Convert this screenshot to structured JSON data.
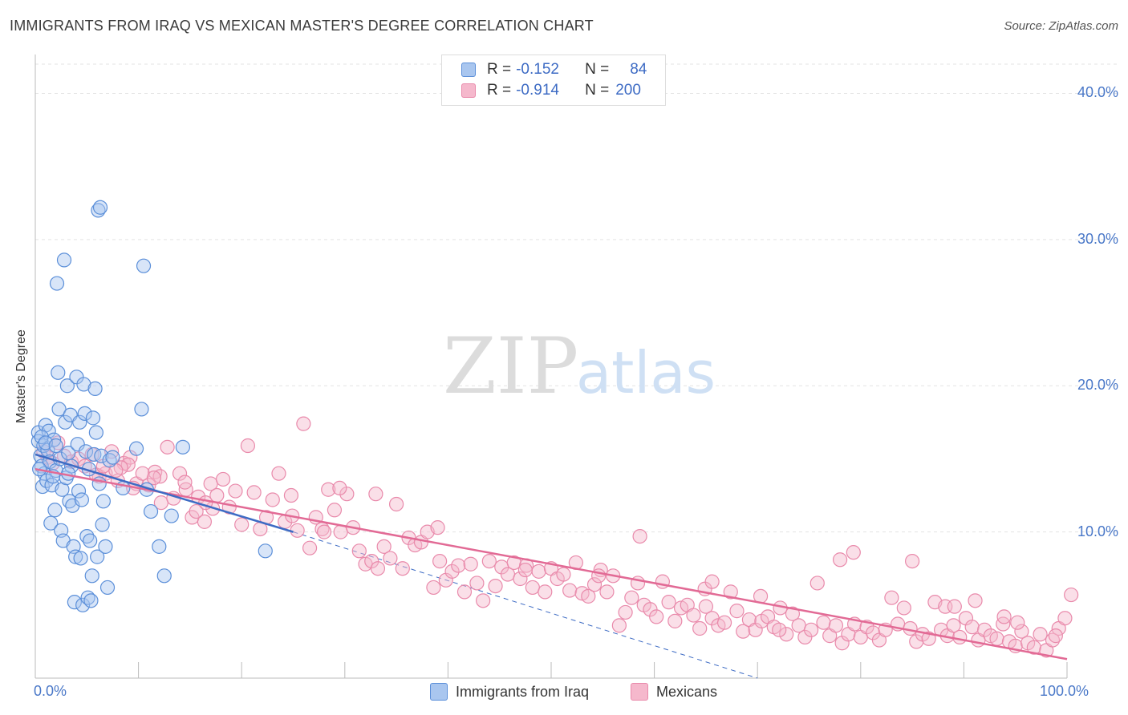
{
  "title": "IMMIGRANTS FROM IRAQ VS MEXICAN MASTER'S DEGREE CORRELATION CHART",
  "source": "Source: ZipAtlas.com",
  "watermark": {
    "zip": "ZIP",
    "atlas": "atlas"
  },
  "colors": {
    "blue_fill": "#a9c6ef",
    "blue_stroke": "#5b8fd9",
    "blue_line": "#3d6bc4",
    "pink_fill": "#f5b8cc",
    "pink_stroke": "#e98aab",
    "pink_line": "#e26a95",
    "axis_text": "#4a78c8",
    "grid": "#e3e3e3"
  },
  "legend": {
    "rows": [
      {
        "r_label": "R =",
        "r_value": "-0.152",
        "n_label": "N =",
        "n_value": "84"
      },
      {
        "r_label": "R =",
        "r_value": "-0.914",
        "n_label": "N =",
        "n_value": "200"
      }
    ]
  },
  "chart_data": {
    "type": "scatter",
    "title": "IMMIGRANTS FROM IRAQ VS MEXICAN MASTER'S DEGREE CORRELATION CHART",
    "xlabel": "",
    "ylabel": "Master's Degree",
    "xlim": [
      0,
      100
    ],
    "ylim": [
      0,
      42
    ],
    "x_tick_labels": [
      "0.0%",
      "100.0%"
    ],
    "y_ticks": [
      10,
      20,
      30,
      40
    ],
    "y_tick_labels": [
      "10.0%",
      "20.0%",
      "30.0%",
      "40.0%"
    ],
    "grid": true,
    "legend_position": "top-center",
    "series": [
      {
        "name": "Immigrants from Iraq",
        "color": "blue",
        "trend": {
          "x0": 0,
          "y0": 15.3,
          "x1": 25,
          "y1": 10.0,
          "dashed_to_x": 70,
          "dashed_to_y": 0.0
        },
        "points": [
          [
            0.3,
            16.8
          ],
          [
            0.3,
            16.2
          ],
          [
            0.5,
            15.2
          ],
          [
            0.6,
            14.5
          ],
          [
            0.7,
            13.1
          ],
          [
            0.8,
            15.9
          ],
          [
            0.9,
            14.0
          ],
          [
            1.0,
            17.3
          ],
          [
            1.1,
            13.5
          ],
          [
            1.2,
            15.6
          ],
          [
            1.3,
            16.9
          ],
          [
            1.4,
            14.8
          ],
          [
            1.5,
            10.6
          ],
          [
            1.6,
            13.2
          ],
          [
            1.8,
            16.3
          ],
          [
            1.9,
            11.5
          ],
          [
            2.0,
            14.2
          ],
          [
            2.1,
            27.0
          ],
          [
            2.2,
            20.9
          ],
          [
            2.3,
            18.4
          ],
          [
            2.4,
            15.0
          ],
          [
            2.5,
            10.1
          ],
          [
            2.6,
            12.9
          ],
          [
            2.7,
            9.4
          ],
          [
            2.8,
            28.6
          ],
          [
            2.9,
            17.5
          ],
          [
            3.0,
            13.7
          ],
          [
            3.1,
            20.0
          ],
          [
            3.2,
            15.4
          ],
          [
            3.3,
            12.1
          ],
          [
            3.4,
            18.0
          ],
          [
            3.5,
            14.5
          ],
          [
            3.6,
            11.8
          ],
          [
            3.7,
            9.0
          ],
          [
            3.8,
            5.2
          ],
          [
            3.9,
            8.3
          ],
          [
            4.0,
            20.6
          ],
          [
            4.1,
            16.0
          ],
          [
            4.2,
            12.8
          ],
          [
            4.3,
            17.5
          ],
          [
            4.4,
            8.2
          ],
          [
            4.5,
            12.2
          ],
          [
            4.6,
            5.0
          ],
          [
            4.7,
            20.1
          ],
          [
            4.8,
            18.1
          ],
          [
            4.9,
            15.5
          ],
          [
            5.0,
            9.7
          ],
          [
            5.1,
            5.5
          ],
          [
            5.2,
            14.3
          ],
          [
            5.3,
            9.4
          ],
          [
            5.4,
            5.3
          ],
          [
            5.5,
            7.0
          ],
          [
            5.6,
            17.8
          ],
          [
            5.7,
            15.3
          ],
          [
            5.8,
            19.8
          ],
          [
            5.9,
            16.8
          ],
          [
            6.0,
            8.3
          ],
          [
            6.1,
            32.0
          ],
          [
            6.2,
            13.3
          ],
          [
            6.3,
            32.2
          ],
          [
            6.4,
            15.2
          ],
          [
            6.5,
            10.5
          ],
          [
            6.6,
            12.1
          ],
          [
            6.8,
            9.0
          ],
          [
            7.0,
            6.2
          ],
          [
            7.2,
            14.9
          ],
          [
            7.5,
            15.1
          ],
          [
            8.5,
            13.0
          ],
          [
            9.8,
            15.7
          ],
          [
            10.3,
            18.4
          ],
          [
            10.5,
            28.2
          ],
          [
            10.8,
            12.9
          ],
          [
            11.2,
            11.4
          ],
          [
            12.0,
            9.0
          ],
          [
            12.5,
            7.0
          ],
          [
            13.2,
            11.1
          ],
          [
            14.3,
            15.8
          ],
          [
            22.3,
            8.7
          ],
          [
            0.4,
            14.3
          ],
          [
            0.6,
            16.5
          ],
          [
            1.0,
            16.1
          ],
          [
            1.7,
            13.8
          ],
          [
            2.0,
            15.9
          ],
          [
            3.2,
            14.0
          ]
        ]
      },
      {
        "name": "Mexicans",
        "color": "pink",
        "trend": {
          "x0": 0,
          "y0": 14.3,
          "x1": 100,
          "y1": 1.3
        },
        "points": [
          [
            0.8,
            15.5
          ],
          [
            1.2,
            15.1
          ],
          [
            1.7,
            14.7
          ],
          [
            2.2,
            16.1
          ],
          [
            2.8,
            15.2
          ],
          [
            3.5,
            14.8
          ],
          [
            4.2,
            15.0
          ],
          [
            4.8,
            14.5
          ],
          [
            5.5,
            15.3
          ],
          [
            6.2,
            13.8
          ],
          [
            6.8,
            14.0
          ],
          [
            7.4,
            15.5
          ],
          [
            8.0,
            13.5
          ],
          [
            8.6,
            14.7
          ],
          [
            9.2,
            15.1
          ],
          [
            9.8,
            13.3
          ],
          [
            10.4,
            14.0
          ],
          [
            11.0,
            13.2
          ],
          [
            11.6,
            14.1
          ],
          [
            12.2,
            12.0
          ],
          [
            12.8,
            15.8
          ],
          [
            13.4,
            12.3
          ],
          [
            14.0,
            14.0
          ],
          [
            14.6,
            12.9
          ],
          [
            15.2,
            11.0
          ],
          [
            15.8,
            12.4
          ],
          [
            16.4,
            10.7
          ],
          [
            17.0,
            13.3
          ],
          [
            17.6,
            12.5
          ],
          [
            18.2,
            13.6
          ],
          [
            18.8,
            11.7
          ],
          [
            19.4,
            12.8
          ],
          [
            20.0,
            10.5
          ],
          [
            20.6,
            15.9
          ],
          [
            21.2,
            12.7
          ],
          [
            21.8,
            10.2
          ],
          [
            22.4,
            11.0
          ],
          [
            23.0,
            12.2
          ],
          [
            23.6,
            14.0
          ],
          [
            24.2,
            10.7
          ],
          [
            24.8,
            12.5
          ],
          [
            25.4,
            10.1
          ],
          [
            26.0,
            17.4
          ],
          [
            26.6,
            8.9
          ],
          [
            27.2,
            11.0
          ],
          [
            27.8,
            10.2
          ],
          [
            28.4,
            12.9
          ],
          [
            29.0,
            11.5
          ],
          [
            29.6,
            10.0
          ],
          [
            30.2,
            12.6
          ],
          [
            30.8,
            10.3
          ],
          [
            31.4,
            8.7
          ],
          [
            32.0,
            7.8
          ],
          [
            32.6,
            8.0
          ],
          [
            33.2,
            7.5
          ],
          [
            33.8,
            9.0
          ],
          [
            34.4,
            8.2
          ],
          [
            35.0,
            11.9
          ],
          [
            35.6,
            7.5
          ],
          [
            36.2,
            9.6
          ],
          [
            36.8,
            9.1
          ],
          [
            37.4,
            9.3
          ],
          [
            38.0,
            10.0
          ],
          [
            38.6,
            6.2
          ],
          [
            39.2,
            8.0
          ],
          [
            39.8,
            6.7
          ],
          [
            40.4,
            7.3
          ],
          [
            41.0,
            7.7
          ],
          [
            41.6,
            5.9
          ],
          [
            42.2,
            7.8
          ],
          [
            42.8,
            6.5
          ],
          [
            43.4,
            5.3
          ],
          [
            44.0,
            8.0
          ],
          [
            44.6,
            6.3
          ],
          [
            45.2,
            7.6
          ],
          [
            45.8,
            7.1
          ],
          [
            46.4,
            7.9
          ],
          [
            47.0,
            6.8
          ],
          [
            47.6,
            7.7
          ],
          [
            48.2,
            6.2
          ],
          [
            48.8,
            7.3
          ],
          [
            49.4,
            5.9
          ],
          [
            50.0,
            7.5
          ],
          [
            50.6,
            6.8
          ],
          [
            51.2,
            7.1
          ],
          [
            51.8,
            6.0
          ],
          [
            52.4,
            7.9
          ],
          [
            53.0,
            5.8
          ],
          [
            53.6,
            5.6
          ],
          [
            54.2,
            6.4
          ],
          [
            54.8,
            7.4
          ],
          [
            55.4,
            5.9
          ],
          [
            56.0,
            7.0
          ],
          [
            56.6,
            3.6
          ],
          [
            57.2,
            4.5
          ],
          [
            57.8,
            5.5
          ],
          [
            58.4,
            6.5
          ],
          [
            59.0,
            5.0
          ],
          [
            59.6,
            4.7
          ],
          [
            60.2,
            4.2
          ],
          [
            60.8,
            6.6
          ],
          [
            61.4,
            5.2
          ],
          [
            62.0,
            3.9
          ],
          [
            62.6,
            4.8
          ],
          [
            63.2,
            5.0
          ],
          [
            63.8,
            4.3
          ],
          [
            64.4,
            3.4
          ],
          [
            65.0,
            4.9
          ],
          [
            65.6,
            4.1
          ],
          [
            66.2,
            3.6
          ],
          [
            66.8,
            3.8
          ],
          [
            67.4,
            5.9
          ],
          [
            68.0,
            4.6
          ],
          [
            68.6,
            3.2
          ],
          [
            69.2,
            4.0
          ],
          [
            69.8,
            3.3
          ],
          [
            70.4,
            3.9
          ],
          [
            71.0,
            4.2
          ],
          [
            71.6,
            3.5
          ],
          [
            72.2,
            4.8
          ],
          [
            72.8,
            3.0
          ],
          [
            73.4,
            4.4
          ],
          [
            74.0,
            3.6
          ],
          [
            74.6,
            2.8
          ],
          [
            75.2,
            3.3
          ],
          [
            75.8,
            6.5
          ],
          [
            76.4,
            3.8
          ],
          [
            77.0,
            2.9
          ],
          [
            77.6,
            3.6
          ],
          [
            78.2,
            2.4
          ],
          [
            78.8,
            3.0
          ],
          [
            79.4,
            3.7
          ],
          [
            80.0,
            2.8
          ],
          [
            80.6,
            3.5
          ],
          [
            81.2,
            3.1
          ],
          [
            81.8,
            2.6
          ],
          [
            82.4,
            3.3
          ],
          [
            83.0,
            5.5
          ],
          [
            83.6,
            3.7
          ],
          [
            84.2,
            4.8
          ],
          [
            84.8,
            3.4
          ],
          [
            85.4,
            2.5
          ],
          [
            86.0,
            3.0
          ],
          [
            86.6,
            2.7
          ],
          [
            87.2,
            5.2
          ],
          [
            87.8,
            3.3
          ],
          [
            88.4,
            2.9
          ],
          [
            89.0,
            3.6
          ],
          [
            89.6,
            2.8
          ],
          [
            90.2,
            4.1
          ],
          [
            90.8,
            3.5
          ],
          [
            91.4,
            2.6
          ],
          [
            92.0,
            3.3
          ],
          [
            92.6,
            2.9
          ],
          [
            93.2,
            2.7
          ],
          [
            93.8,
            3.7
          ],
          [
            94.4,
            2.5
          ],
          [
            95.0,
            2.2
          ],
          [
            95.6,
            3.2
          ],
          [
            96.2,
            2.4
          ],
          [
            96.8,
            2.1
          ],
          [
            97.4,
            3.0
          ],
          [
            98.0,
            1.9
          ],
          [
            98.6,
            2.6
          ],
          [
            99.2,
            3.4
          ],
          [
            99.8,
            4.1
          ],
          [
            100.4,
            5.7
          ],
          [
            39.0,
            10.3
          ],
          [
            33.0,
            12.6
          ],
          [
            29.5,
            13.0
          ],
          [
            28.0,
            10.0
          ],
          [
            24.9,
            11.1
          ],
          [
            17.2,
            11.6
          ],
          [
            16.5,
            12.0
          ],
          [
            15.6,
            11.4
          ],
          [
            14.5,
            13.4
          ],
          [
            12.1,
            13.8
          ],
          [
            11.5,
            13.7
          ],
          [
            9.5,
            13.0
          ],
          [
            9.0,
            14.6
          ],
          [
            8.3,
            14.4
          ],
          [
            7.8,
            14.2
          ],
          [
            5.9,
            13.9
          ],
          [
            6.6,
            14.5
          ],
          [
            47.5,
            7.4
          ],
          [
            54.6,
            7.0
          ],
          [
            58.6,
            9.7
          ],
          [
            64.9,
            6.1
          ],
          [
            72.1,
            3.3
          ],
          [
            78.0,
            8.1
          ],
          [
            79.3,
            8.6
          ],
          [
            85.0,
            8.0
          ],
          [
            88.2,
            4.9
          ],
          [
            89.1,
            4.9
          ],
          [
            91.1,
            5.3
          ],
          [
            93.9,
            4.2
          ],
          [
            95.2,
            3.8
          ],
          [
            98.9,
            2.9
          ],
          [
            65.6,
            6.6
          ],
          [
            70.3,
            5.6
          ]
        ]
      }
    ],
    "legend_entries": [
      "Immigrants from Iraq",
      "Mexicans"
    ]
  }
}
